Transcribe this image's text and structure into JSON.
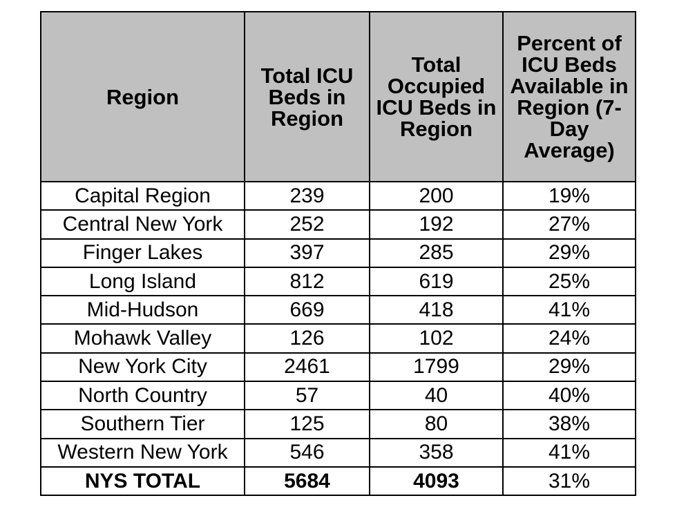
{
  "table": {
    "headers": [
      "Region",
      "Total ICU Beds in Region",
      "Total Occupied ICU Beds in Region",
      "Percent of ICU Beds Available in Region (7-Day Average)"
    ],
    "rows": [
      [
        "Capital Region",
        "239",
        "200",
        "19%"
      ],
      [
        "Central New York",
        "252",
        "192",
        "27%"
      ],
      [
        "Finger Lakes",
        "397",
        "285",
        "29%"
      ],
      [
        "Long Island",
        "812",
        "619",
        "25%"
      ],
      [
        "Mid-Hudson",
        "669",
        "418",
        "41%"
      ],
      [
        "Mohawk Valley",
        "126",
        "102",
        "24%"
      ],
      [
        "New York City",
        "2461",
        "1799",
        "29%"
      ],
      [
        "North Country",
        "57",
        "40",
        "40%"
      ],
      [
        "Southern Tier",
        "125",
        "80",
        "38%"
      ],
      [
        "Western New York",
        "546",
        "358",
        "41%"
      ]
    ],
    "total": [
      "NYS TOTAL",
      "5684",
      "4093",
      "31%"
    ]
  },
  "colors": {
    "header_background": "#c0c0c0",
    "border": "#000000"
  }
}
